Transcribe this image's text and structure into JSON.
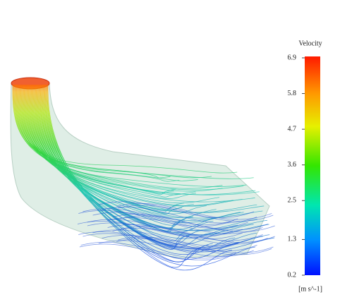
{
  "legend": {
    "title": "Velocity",
    "ticks": [
      6.9,
      5.8,
      4.7,
      3.6,
      2.5,
      1.3,
      0.2
    ],
    "unit": "[m s^-1]"
  }
}
